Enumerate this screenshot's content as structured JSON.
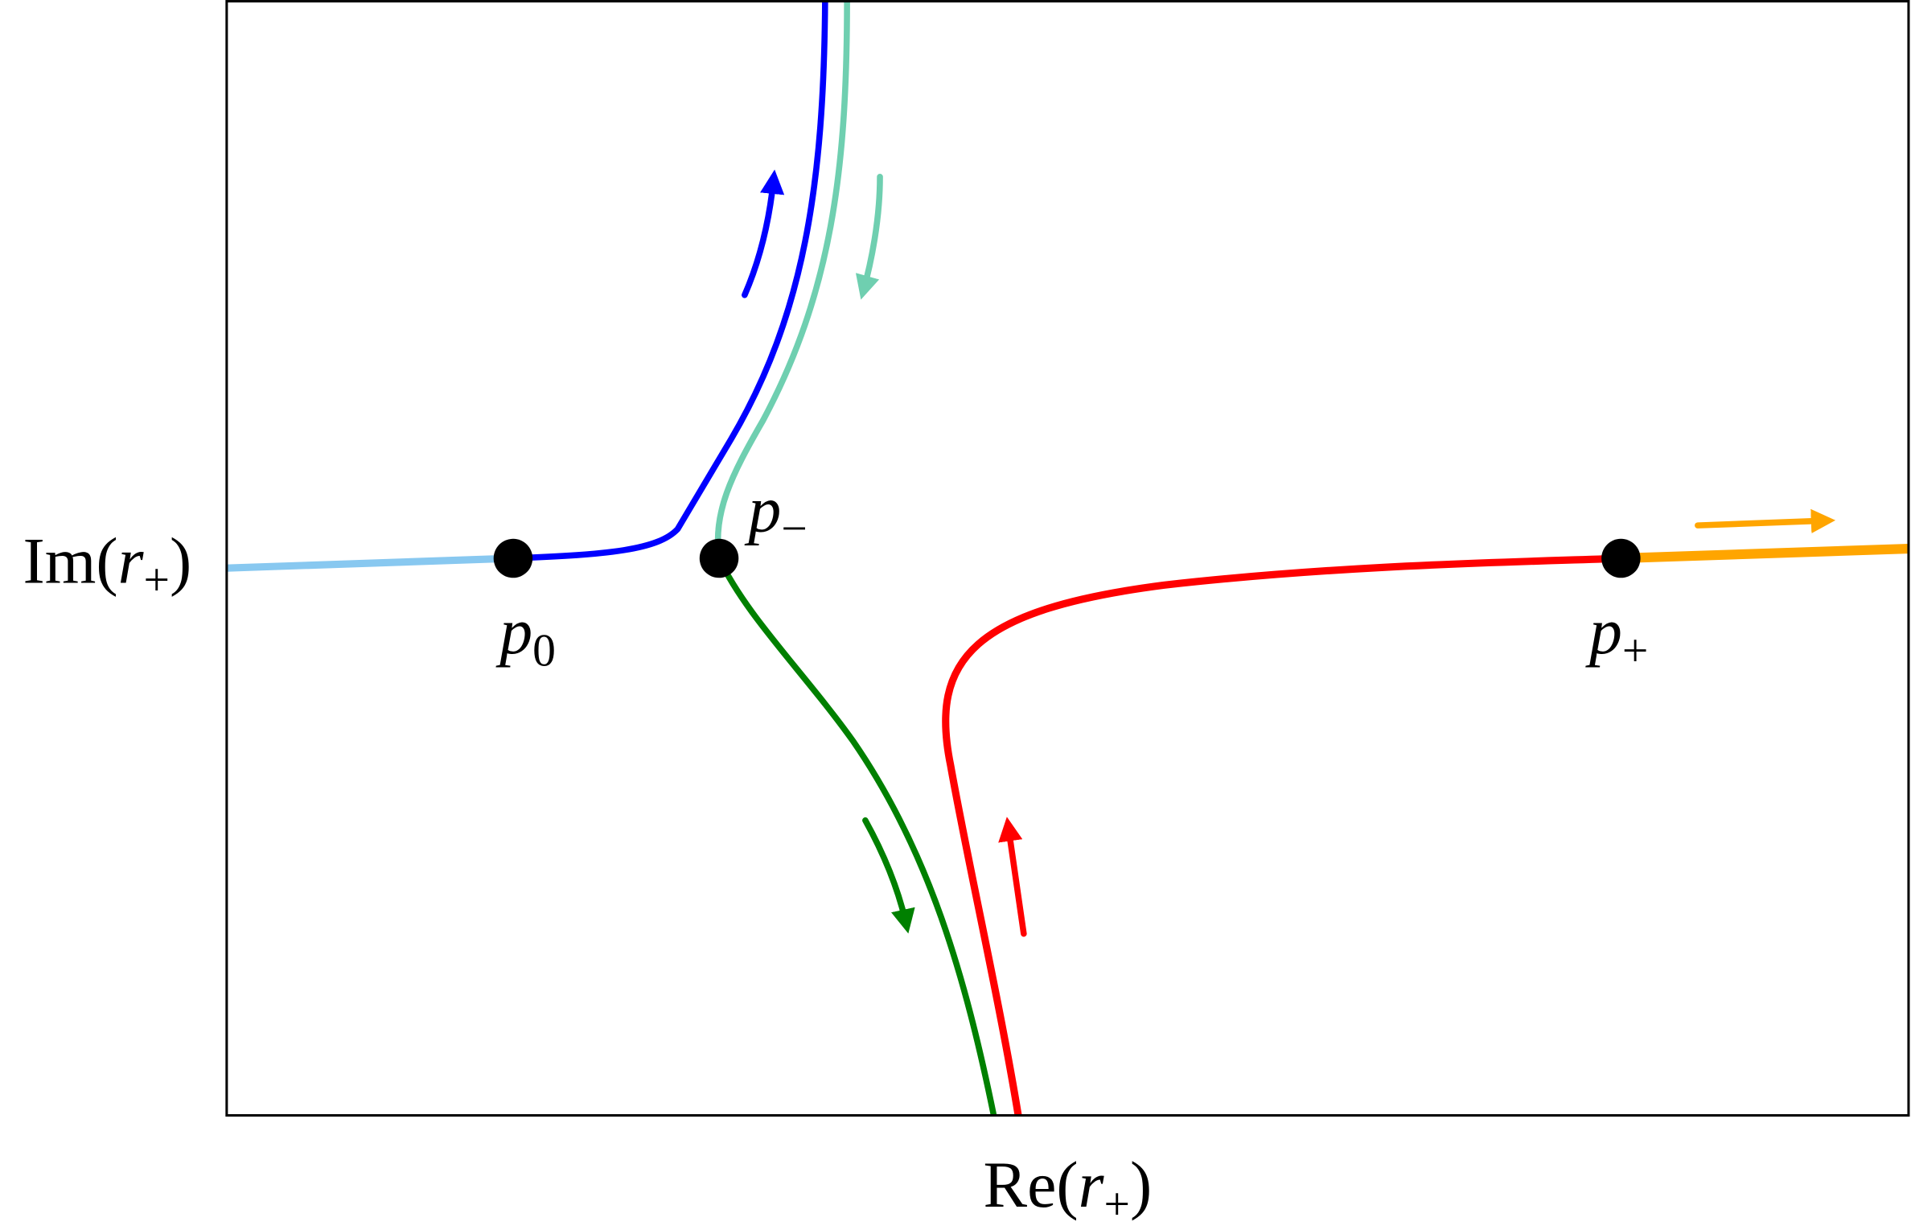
{
  "axes": {
    "x_label": {
      "base": "Re(",
      "var": "r",
      "sub": "+",
      "close": ")"
    },
    "y_label": {
      "base": "Im(",
      "var": "r",
      "sub": "+",
      "close": ")"
    }
  },
  "points": [
    {
      "name": "p",
      "sub": "0"
    },
    {
      "name": "p",
      "sub": "−"
    },
    {
      "name": "p",
      "sub": "+"
    }
  ]
}
